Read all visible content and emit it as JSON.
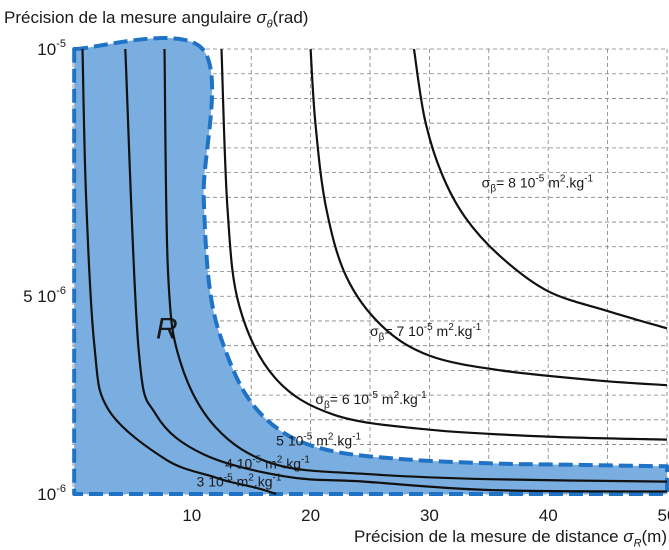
{
  "chart_data": {
    "type": "line",
    "title": "",
    "ylabel": {
      "text": "Précision de la mesure angulaire ",
      "symbol": "σ",
      "subscript": "θ",
      "unit": "(rad)"
    },
    "xlabel": {
      "text": "Précision de la mesure de distance ",
      "symbol": "σ",
      "subscript": "R",
      "unit": "(m)"
    },
    "xlim": [
      0,
      50
    ],
    "ylim": [
      1e-06,
      1e-05
    ],
    "x_ticks": [
      {
        "value": 10,
        "label": "10"
      },
      {
        "value": 20,
        "label": "20"
      },
      {
        "value": 30,
        "label": "30"
      },
      {
        "value": 40,
        "label": "40"
      },
      {
        "value": 50,
        "label": "50"
      }
    ],
    "y_ticks": [
      {
        "value": 1e-05,
        "base": "10",
        "exp": "-5"
      },
      {
        "value": 5e-06,
        "base": "5 10",
        "exp": "-6"
      },
      {
        "value": 1e-06,
        "base": "10",
        "exp": "-6"
      }
    ],
    "grid": true,
    "grid_x": [
      0,
      5,
      10,
      15,
      20,
      25,
      30,
      35,
      40,
      45,
      50
    ],
    "grid_y": [
      1e-06,
      1.5e-06,
      2e-06,
      2.5e-06,
      3e-06,
      3.5e-06,
      4e-06,
      4.5e-06,
      5e-06,
      5.5e-06,
      6e-06,
      6.5e-06,
      7e-06,
      7.5e-06,
      8e-06,
      8.5e-06,
      9e-06,
      9.5e-06,
      1e-05
    ],
    "region": {
      "label": "R",
      "fill": "#7aaee0",
      "edge": "#1f72c4",
      "boundary": [
        [
          0.1,
          1e-05
        ],
        [
          10.9,
          1e-05
        ],
        [
          11,
          7e-06
        ],
        [
          11.6,
          5e-06
        ],
        [
          13,
          3.8e-06
        ],
        [
          15,
          2.85e-06
        ],
        [
          18,
          2.2e-06
        ],
        [
          22,
          1.86e-06
        ],
        [
          28,
          1.7e-06
        ],
        [
          35,
          1.62e-06
        ],
        [
          42,
          1.59e-06
        ],
        [
          50,
          1.56e-06
        ],
        [
          50,
          1e-06
        ],
        [
          0.1,
          1e-06
        ]
      ]
    },
    "series": [
      {
        "label_num": "3",
        "curve": [
          [
            17.1,
            1e-06
          ],
          [
            15.5,
            1.12e-06
          ],
          [
            13.3,
            1.24e-06
          ],
          [
            11.8,
            1.35e-06
          ],
          [
            7.8,
            1.7e-06
          ],
          [
            3,
            2.7e-06
          ],
          [
            1.8,
            4e-06
          ],
          [
            1.1,
            7e-06
          ],
          [
            0.8,
            1e-05
          ]
        ]
      },
      {
        "label_num": "4",
        "curve": [
          [
            50,
            1.05e-06
          ],
          [
            35,
            1.08e-06
          ],
          [
            24.5,
            1.25e-06
          ],
          [
            18,
            1.35e-06
          ],
          [
            11,
            1.8e-06
          ],
          [
            7,
            2.6e-06
          ],
          [
            5.5,
            4e-06
          ],
          [
            4.4,
            1e-05
          ]
        ]
      },
      {
        "label_num": "5",
        "curve": [
          [
            50,
            1.25e-06
          ],
          [
            35,
            1.3e-06
          ],
          [
            25,
            1.4e-06
          ],
          [
            17,
            1.6e-06
          ],
          [
            12,
            2.35e-06
          ],
          [
            9,
            3.7e-06
          ],
          [
            8,
            5.5e-06
          ],
          [
            7.7,
            1e-05
          ]
        ]
      },
      {
        "label_num": "6",
        "curve": [
          [
            50,
            2.1e-06
          ],
          [
            40,
            2.16e-06
          ],
          [
            30,
            2.3e-06
          ],
          [
            22,
            2.6e-06
          ],
          [
            17,
            3.35e-06
          ],
          [
            14,
            4.8e-06
          ],
          [
            13,
            6.8e-06
          ],
          [
            12.5,
            1e-05
          ]
        ]
      },
      {
        "label_num": "7",
        "curve": [
          [
            50,
            3.2e-06
          ],
          [
            44,
            3.3e-06
          ],
          [
            36,
            3.5e-06
          ],
          [
            30,
            3.8e-06
          ],
          [
            26,
            4.4e-06
          ],
          [
            23,
            5.4e-06
          ],
          [
            21.3,
            6.8e-06
          ],
          [
            20.4,
            8.5e-06
          ],
          [
            20,
            1e-05
          ]
        ]
      },
      {
        "label_num": "8",
        "curve": [
          [
            50,
            4.35e-06
          ],
          [
            45,
            4.7e-06
          ],
          [
            40,
            5.1e-06
          ],
          [
            36,
            5.8e-06
          ],
          [
            33,
            6.6e-06
          ],
          [
            31,
            7.5e-06
          ],
          [
            29.6,
            8.6e-06
          ],
          [
            28.7,
            1e-05
          ]
        ]
      }
    ],
    "annotations": [
      {
        "sigma": "σ",
        "sub": "β",
        "eq": "= ",
        "num": "8",
        "mid": " 10",
        "exp": "-5",
        "unit": " m",
        "u2": "2",
        "unit2": ".kg",
        "u3": "-1",
        "x": 34.4,
        "y": 7.2e-06
      },
      {
        "sigma": "σ",
        "sub": "β",
        "eq": "= ",
        "num": "7",
        "mid": " 10",
        "exp": "-5",
        "unit": " m",
        "u2": "2",
        "unit2": ".kg",
        "u3": "-1",
        "x": 25,
        "y": 4.2e-06
      },
      {
        "sigma": "σ",
        "sub": "β",
        "eq": "= ",
        "num": "6",
        "mid": " 10",
        "exp": "-5",
        "unit": " m",
        "u2": "2",
        "unit2": ".kg",
        "u3": "-1",
        "x": 20.4,
        "y": 2.82e-06
      },
      {
        "sigma": "",
        "sub": "",
        "eq": "",
        "num": "5",
        "mid": " 10",
        "exp": "-5",
        "unit": " m",
        "u2": "2",
        "unit2": ".kg",
        "u3": "-1",
        "x": 17.1,
        "y": 1.98e-06
      },
      {
        "sigma": "",
        "sub": "",
        "eq": "",
        "num": "4",
        "mid": " 10",
        "exp": "-5",
        "unit": " m",
        "u2": "2",
        "unit2": ".kg",
        "u3": "-1",
        "x": 12.8,
        "y": 1.52e-06
      },
      {
        "sigma": "",
        "sub": "",
        "eq": "",
        "num": "3",
        "mid": " 10",
        "exp": "-5",
        "unit": " m",
        "u2": "2",
        "unit2": ".kg",
        "u3": "-1",
        "x": 10.4,
        "y": 1.15e-06
      }
    ]
  }
}
